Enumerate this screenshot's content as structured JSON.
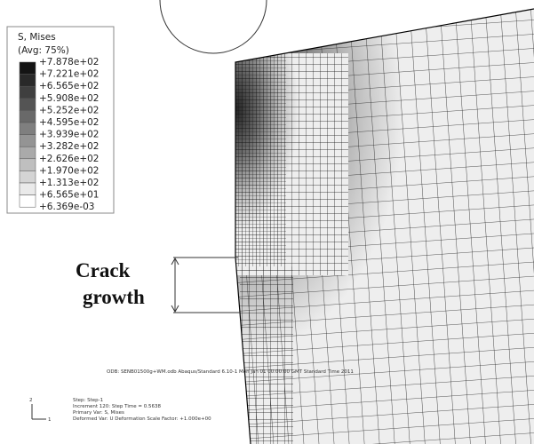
{
  "legend": {
    "title": "S, Mises",
    "subtitle": "(Avg: 75%)",
    "labels": [
      "+7.878e+02",
      "+7.221e+02",
      "+6.565e+02",
      "+5.908e+02",
      "+5.252e+02",
      "+4.595e+02",
      "+3.939e+02",
      "+3.282e+02",
      "+2.626e+02",
      "+1.970e+02",
      "+1.313e+02",
      "+6.565e+01",
      "+6.369e-03"
    ]
  },
  "annotation": {
    "line1": "Crack",
    "line2": "growth"
  },
  "info": {
    "odb": "ODB: SENB01500g+WM.odb    Abaqus/Standard 6.10-1    Mon Jan 01 00:00:00 GMT Standard Time 2011",
    "lines": [
      "Step: Step-1",
      "Increment    120: Step Time =    0.5638",
      "Primary Var: S, Mises",
      "Deformed Var: U   Deformation Scale Factor: +1.000e+00"
    ]
  },
  "triad": {
    "y": "2",
    "x": "1"
  }
}
